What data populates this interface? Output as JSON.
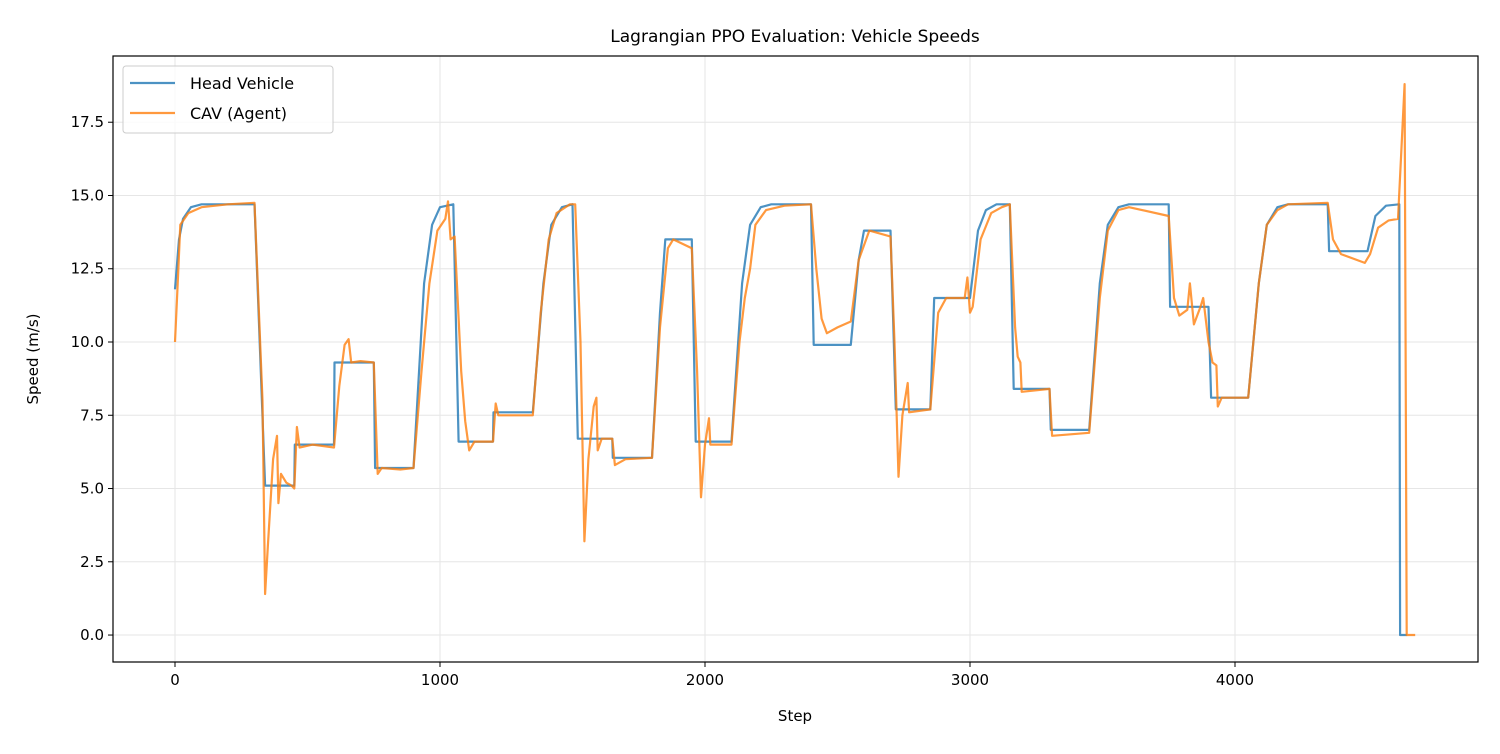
{
  "chart_data": {
    "type": "line",
    "title": "Lagrangian PPO Evaluation: Vehicle Speeds",
    "xlabel": "Step",
    "ylabel": "Speed (m/s)",
    "xlim": [
      -234,
      4917
    ],
    "ylim": [
      -0.92,
      19.76
    ],
    "xticks": [
      0,
      1000,
      2000,
      3000,
      4000
    ],
    "xtick_labels": [
      "0",
      "1000",
      "2000",
      "3000",
      "4000"
    ],
    "yticks": [
      0,
      2.5,
      5,
      7.5,
      10,
      12.5,
      15,
      17.5
    ],
    "ytick_labels": [
      "0.0",
      "2.5",
      "5.0",
      "7.5",
      "10.0",
      "12.5",
      "15.0",
      "17.5"
    ],
    "grid": true,
    "legend_placement": "top-left",
    "series": [
      {
        "name": "Head Vehicle",
        "color": "#1f77b4",
        "points": [
          [
            0,
            11.8
          ],
          [
            15,
            13.5
          ],
          [
            30,
            14.2
          ],
          [
            60,
            14.6
          ],
          [
            100,
            14.7
          ],
          [
            300,
            14.7
          ],
          [
            340,
            5.1
          ],
          [
            450,
            5.1
          ],
          [
            452,
            6.5
          ],
          [
            600,
            6.5
          ],
          [
            602,
            9.3
          ],
          [
            750,
            9.3
          ],
          [
            755,
            5.7
          ],
          [
            900,
            5.7
          ],
          [
            940,
            12
          ],
          [
            970,
            14
          ],
          [
            1000,
            14.6
          ],
          [
            1050,
            14.7
          ],
          [
            1070,
            6.6
          ],
          [
            1200,
            6.6
          ],
          [
            1202,
            7.6
          ],
          [
            1350,
            7.6
          ],
          [
            1390,
            12
          ],
          [
            1420,
            14
          ],
          [
            1460,
            14.6
          ],
          [
            1500,
            14.7
          ],
          [
            1520,
            6.7
          ],
          [
            1650,
            6.7
          ],
          [
            1652,
            6.05
          ],
          [
            1800,
            6.05
          ],
          [
            1830,
            11
          ],
          [
            1850,
            13.5
          ],
          [
            1950,
            13.5
          ],
          [
            1965,
            6.6
          ],
          [
            2100,
            6.6
          ],
          [
            2140,
            12
          ],
          [
            2170,
            14
          ],
          [
            2210,
            14.6
          ],
          [
            2250,
            14.7
          ],
          [
            2400,
            14.7
          ],
          [
            2410,
            9.9
          ],
          [
            2550,
            9.9
          ],
          [
            2580,
            12.8
          ],
          [
            2600,
            13.8
          ],
          [
            2700,
            13.8
          ],
          [
            2720,
            7.7
          ],
          [
            2850,
            7.7
          ],
          [
            2865,
            11.5
          ],
          [
            3000,
            11.5
          ],
          [
            3030,
            13.8
          ],
          [
            3060,
            14.5
          ],
          [
            3100,
            14.7
          ],
          [
            3150,
            14.7
          ],
          [
            3165,
            8.4
          ],
          [
            3300,
            8.4
          ],
          [
            3305,
            7.0
          ],
          [
            3450,
            7.0
          ],
          [
            3490,
            12
          ],
          [
            3520,
            14
          ],
          [
            3560,
            14.6
          ],
          [
            3600,
            14.7
          ],
          [
            3750,
            14.7
          ],
          [
            3755,
            11.2
          ],
          [
            3900,
            11.2
          ],
          [
            3910,
            8.1
          ],
          [
            4050,
            8.1
          ],
          [
            4090,
            12
          ],
          [
            4120,
            14
          ],
          [
            4160,
            14.6
          ],
          [
            4200,
            14.7
          ],
          [
            4350,
            14.7
          ],
          [
            4355,
            13.1
          ],
          [
            4500,
            13.1
          ],
          [
            4530,
            14.3
          ],
          [
            4570,
            14.65
          ],
          [
            4620,
            14.7
          ],
          [
            4623,
            0
          ],
          [
            4650,
            0
          ]
        ]
      },
      {
        "name": "CAV (Agent)",
        "color": "#ff7f0e",
        "points": [
          [
            0,
            10
          ],
          [
            10,
            12
          ],
          [
            20,
            14
          ],
          [
            50,
            14.4
          ],
          [
            100,
            14.6
          ],
          [
            200,
            14.7
          ],
          [
            300,
            14.75
          ],
          [
            330,
            8
          ],
          [
            340,
            1.4
          ],
          [
            350,
            3
          ],
          [
            370,
            6
          ],
          [
            385,
            6.8
          ],
          [
            390,
            4.5
          ],
          [
            400,
            5.5
          ],
          [
            420,
            5.2
          ],
          [
            440,
            5.1
          ],
          [
            450,
            5.0
          ],
          [
            460,
            7.1
          ],
          [
            470,
            6.4
          ],
          [
            520,
            6.5
          ],
          [
            600,
            6.4
          ],
          [
            620,
            8.5
          ],
          [
            640,
            9.9
          ],
          [
            655,
            10.1
          ],
          [
            665,
            9.3
          ],
          [
            700,
            9.35
          ],
          [
            750,
            9.3
          ],
          [
            765,
            5.5
          ],
          [
            780,
            5.7
          ],
          [
            850,
            5.65
          ],
          [
            900,
            5.7
          ],
          [
            930,
            9
          ],
          [
            960,
            12
          ],
          [
            990,
            13.8
          ],
          [
            1020,
            14.2
          ],
          [
            1030,
            14.8
          ],
          [
            1040,
            13.5
          ],
          [
            1055,
            13.6
          ],
          [
            1080,
            9
          ],
          [
            1095,
            7.3
          ],
          [
            1110,
            6.3
          ],
          [
            1130,
            6.6
          ],
          [
            1200,
            6.6
          ],
          [
            1210,
            7.9
          ],
          [
            1220,
            7.5
          ],
          [
            1350,
            7.5
          ],
          [
            1380,
            11
          ],
          [
            1410,
            13.5
          ],
          [
            1440,
            14.4
          ],
          [
            1490,
            14.7
          ],
          [
            1510,
            14.7
          ],
          [
            1530,
            10
          ],
          [
            1545,
            3.2
          ],
          [
            1560,
            6
          ],
          [
            1580,
            7.8
          ],
          [
            1590,
            8.1
          ],
          [
            1595,
            6.3
          ],
          [
            1610,
            6.7
          ],
          [
            1650,
            6.7
          ],
          [
            1660,
            5.8
          ],
          [
            1700,
            6.0
          ],
          [
            1800,
            6.05
          ],
          [
            1830,
            10.5
          ],
          [
            1860,
            13.2
          ],
          [
            1880,
            13.5
          ],
          [
            1950,
            13.2
          ],
          [
            1970,
            9
          ],
          [
            1985,
            4.7
          ],
          [
            2000,
            6.5
          ],
          [
            2015,
            7.4
          ],
          [
            2020,
            6.5
          ],
          [
            2100,
            6.5
          ],
          [
            2130,
            10
          ],
          [
            2150,
            11.5
          ],
          [
            2170,
            12.5
          ],
          [
            2190,
            14
          ],
          [
            2230,
            14.5
          ],
          [
            2300,
            14.65
          ],
          [
            2400,
            14.7
          ],
          [
            2420,
            12.5
          ],
          [
            2440,
            10.8
          ],
          [
            2460,
            10.3
          ],
          [
            2500,
            10.5
          ],
          [
            2550,
            10.7
          ],
          [
            2580,
            12.8
          ],
          [
            2620,
            13.8
          ],
          [
            2700,
            13.6
          ],
          [
            2715,
            10
          ],
          [
            2730,
            5.4
          ],
          [
            2745,
            7.5
          ],
          [
            2765,
            8.6
          ],
          [
            2770,
            7.6
          ],
          [
            2850,
            7.7
          ],
          [
            2880,
            11
          ],
          [
            2910,
            11.5
          ],
          [
            2980,
            11.5
          ],
          [
            2990,
            12.2
          ],
          [
            3000,
            11
          ],
          [
            3010,
            11.2
          ],
          [
            3040,
            13.5
          ],
          [
            3080,
            14.4
          ],
          [
            3120,
            14.6
          ],
          [
            3150,
            14.7
          ],
          [
            3170,
            10.5
          ],
          [
            3180,
            9.5
          ],
          [
            3190,
            9.3
          ],
          [
            3195,
            8.3
          ],
          [
            3300,
            8.4
          ],
          [
            3310,
            6.8
          ],
          [
            3450,
            6.9
          ],
          [
            3490,
            11.5
          ],
          [
            3520,
            13.8
          ],
          [
            3560,
            14.5
          ],
          [
            3600,
            14.6
          ],
          [
            3750,
            14.3
          ],
          [
            3770,
            11.5
          ],
          [
            3790,
            10.9
          ],
          [
            3820,
            11.1
          ],
          [
            3830,
            12
          ],
          [
            3845,
            10.6
          ],
          [
            3870,
            11.2
          ],
          [
            3880,
            11.5
          ],
          [
            3900,
            10
          ],
          [
            3915,
            9.3
          ],
          [
            3930,
            9.2
          ],
          [
            3935,
            7.8
          ],
          [
            3950,
            8.1
          ],
          [
            4050,
            8.1
          ],
          [
            4090,
            12
          ],
          [
            4120,
            14
          ],
          [
            4160,
            14.5
          ],
          [
            4200,
            14.7
          ],
          [
            4350,
            14.75
          ],
          [
            4370,
            13.5
          ],
          [
            4400,
            13.0
          ],
          [
            4490,
            12.7
          ],
          [
            4510,
            13
          ],
          [
            4540,
            13.9
          ],
          [
            4580,
            14.15
          ],
          [
            4615,
            14.2
          ],
          [
            4640,
            18.8
          ],
          [
            4648,
            0
          ],
          [
            4680,
            0
          ]
        ]
      }
    ]
  }
}
